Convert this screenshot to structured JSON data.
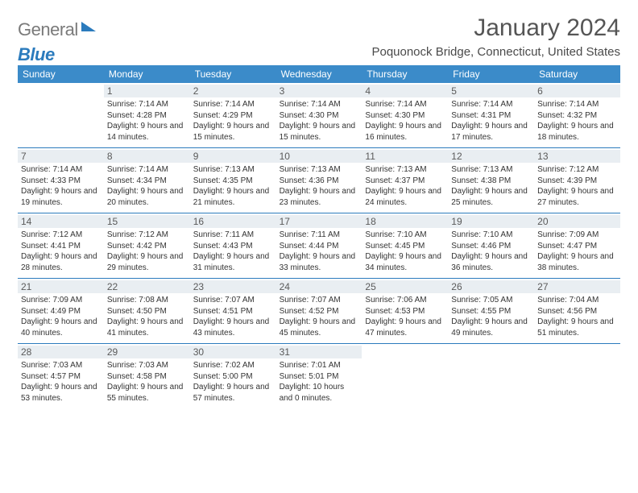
{
  "logo": {
    "gray": "General",
    "blue": "Blue"
  },
  "title": "January 2024",
  "subtitle": "Poquonock Bridge, Connecticut, United States",
  "header_bg": "#3b8bc9",
  "daynum_bg": "#e9eef2",
  "rule_color": "#2b7bbd",
  "day_names": [
    "Sunday",
    "Monday",
    "Tuesday",
    "Wednesday",
    "Thursday",
    "Friday",
    "Saturday"
  ],
  "first_weekday": 1,
  "days": [
    {
      "n": 1,
      "sr": "7:14 AM",
      "ss": "4:28 PM",
      "dl": "9 hours and 14 minutes."
    },
    {
      "n": 2,
      "sr": "7:14 AM",
      "ss": "4:29 PM",
      "dl": "9 hours and 15 minutes."
    },
    {
      "n": 3,
      "sr": "7:14 AM",
      "ss": "4:30 PM",
      "dl": "9 hours and 15 minutes."
    },
    {
      "n": 4,
      "sr": "7:14 AM",
      "ss": "4:30 PM",
      "dl": "9 hours and 16 minutes."
    },
    {
      "n": 5,
      "sr": "7:14 AM",
      "ss": "4:31 PM",
      "dl": "9 hours and 17 minutes."
    },
    {
      "n": 6,
      "sr": "7:14 AM",
      "ss": "4:32 PM",
      "dl": "9 hours and 18 minutes."
    },
    {
      "n": 7,
      "sr": "7:14 AM",
      "ss": "4:33 PM",
      "dl": "9 hours and 19 minutes."
    },
    {
      "n": 8,
      "sr": "7:14 AM",
      "ss": "4:34 PM",
      "dl": "9 hours and 20 minutes."
    },
    {
      "n": 9,
      "sr": "7:13 AM",
      "ss": "4:35 PM",
      "dl": "9 hours and 21 minutes."
    },
    {
      "n": 10,
      "sr": "7:13 AM",
      "ss": "4:36 PM",
      "dl": "9 hours and 23 minutes."
    },
    {
      "n": 11,
      "sr": "7:13 AM",
      "ss": "4:37 PM",
      "dl": "9 hours and 24 minutes."
    },
    {
      "n": 12,
      "sr": "7:13 AM",
      "ss": "4:38 PM",
      "dl": "9 hours and 25 minutes."
    },
    {
      "n": 13,
      "sr": "7:12 AM",
      "ss": "4:39 PM",
      "dl": "9 hours and 27 minutes."
    },
    {
      "n": 14,
      "sr": "7:12 AM",
      "ss": "4:41 PM",
      "dl": "9 hours and 28 minutes."
    },
    {
      "n": 15,
      "sr": "7:12 AM",
      "ss": "4:42 PM",
      "dl": "9 hours and 29 minutes."
    },
    {
      "n": 16,
      "sr": "7:11 AM",
      "ss": "4:43 PM",
      "dl": "9 hours and 31 minutes."
    },
    {
      "n": 17,
      "sr": "7:11 AM",
      "ss": "4:44 PM",
      "dl": "9 hours and 33 minutes."
    },
    {
      "n": 18,
      "sr": "7:10 AM",
      "ss": "4:45 PM",
      "dl": "9 hours and 34 minutes."
    },
    {
      "n": 19,
      "sr": "7:10 AM",
      "ss": "4:46 PM",
      "dl": "9 hours and 36 minutes."
    },
    {
      "n": 20,
      "sr": "7:09 AM",
      "ss": "4:47 PM",
      "dl": "9 hours and 38 minutes."
    },
    {
      "n": 21,
      "sr": "7:09 AM",
      "ss": "4:49 PM",
      "dl": "9 hours and 40 minutes."
    },
    {
      "n": 22,
      "sr": "7:08 AM",
      "ss": "4:50 PM",
      "dl": "9 hours and 41 minutes."
    },
    {
      "n": 23,
      "sr": "7:07 AM",
      "ss": "4:51 PM",
      "dl": "9 hours and 43 minutes."
    },
    {
      "n": 24,
      "sr": "7:07 AM",
      "ss": "4:52 PM",
      "dl": "9 hours and 45 minutes."
    },
    {
      "n": 25,
      "sr": "7:06 AM",
      "ss": "4:53 PM",
      "dl": "9 hours and 47 minutes."
    },
    {
      "n": 26,
      "sr": "7:05 AM",
      "ss": "4:55 PM",
      "dl": "9 hours and 49 minutes."
    },
    {
      "n": 27,
      "sr": "7:04 AM",
      "ss": "4:56 PM",
      "dl": "9 hours and 51 minutes."
    },
    {
      "n": 28,
      "sr": "7:03 AM",
      "ss": "4:57 PM",
      "dl": "9 hours and 53 minutes."
    },
    {
      "n": 29,
      "sr": "7:03 AM",
      "ss": "4:58 PM",
      "dl": "9 hours and 55 minutes."
    },
    {
      "n": 30,
      "sr": "7:02 AM",
      "ss": "5:00 PM",
      "dl": "9 hours and 57 minutes."
    },
    {
      "n": 31,
      "sr": "7:01 AM",
      "ss": "5:01 PM",
      "dl": "10 hours and 0 minutes."
    }
  ],
  "labels": {
    "sunrise": "Sunrise:",
    "sunset": "Sunset:",
    "daylight": "Daylight:"
  }
}
